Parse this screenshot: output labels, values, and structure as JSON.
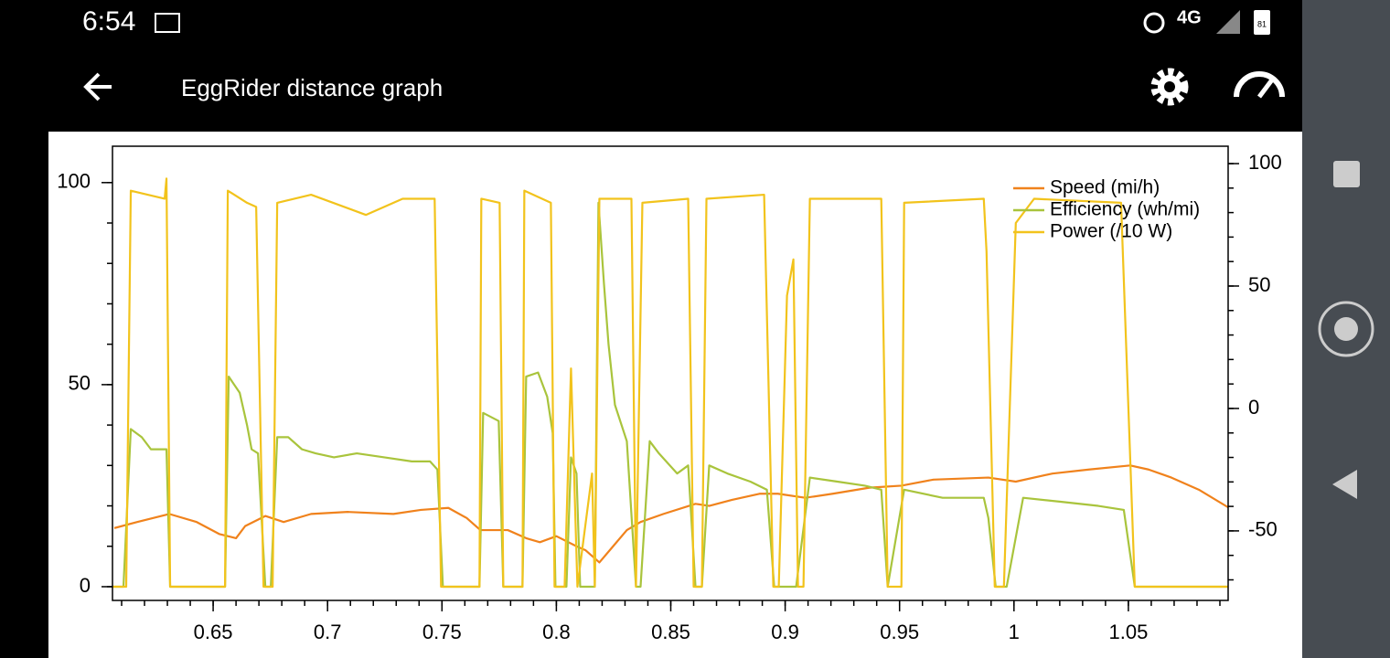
{
  "status_bar": {
    "time": "6:54",
    "network": "4G",
    "battery": "81"
  },
  "toolbar": {
    "title": "EggRider distance graph"
  },
  "chart_data": {
    "type": "line",
    "xlim": [
      0.606,
      1.0936
    ],
    "xticks": [
      0.65,
      0.7,
      0.75,
      0.8,
      0.85,
      0.9,
      0.95,
      1,
      1.05
    ],
    "ylim": [
      -3.4,
      109
    ],
    "yticks": [
      0,
      50,
      100
    ],
    "y2lim": [
      -78.4,
      107.1
    ],
    "y2ticks": [
      -50,
      0,
      50,
      100
    ],
    "legend": "top-right",
    "series": [
      {
        "name": "Speed (mi/h)",
        "color": "#f0821c",
        "x": [
          0.6068,
          0.6168,
          0.6308,
          0.6428,
          0.6528,
          0.66,
          0.664,
          0.6728,
          0.6808,
          0.6928,
          0.7088,
          0.7288,
          0.7408,
          0.7528,
          0.7608,
          0.7668,
          0.7788,
          0.7868,
          0.7928,
          0.8,
          0.8088,
          0.8128,
          0.8188,
          0.8248,
          0.8308,
          0.8368,
          0.8468,
          0.8608,
          0.8668,
          0.8768,
          0.8888,
          0.8968,
          0.9088,
          0.9208,
          0.9368,
          0.9508,
          0.9648,
          0.9888,
          1.0008,
          1.0168,
          1.0328,
          1.0508,
          1.0588,
          1.0688,
          1.0808,
          1.094
        ],
        "values": [
          14.5,
          16,
          18,
          16,
          13,
          12,
          15,
          17.5,
          16,
          18,
          18.5,
          18,
          19,
          19.5,
          17,
          14,
          14,
          12,
          11,
          12.5,
          10,
          9,
          6,
          10,
          14,
          16,
          18,
          20.5,
          20,
          21.5,
          23,
          23,
          22,
          23,
          24.5,
          25,
          26.5,
          27,
          26,
          28,
          29,
          30,
          29,
          27,
          24,
          19.5
        ]
      },
      {
        "name": "Efficiency (wh/mi)",
        "color": "#a9c43c",
        "x": [
          0.606,
          0.6108,
          0.614,
          0.6188,
          0.6228,
          0.6296,
          0.6312,
          0.6552,
          0.6568,
          0.6616,
          0.6648,
          0.6668,
          0.6696,
          0.6728,
          0.6752,
          0.678,
          0.6828,
          0.6888,
          0.6948,
          0.7028,
          0.7128,
          0.7248,
          0.7368,
          0.7448,
          0.748,
          0.7504,
          0.7664,
          0.768,
          0.7748,
          0.7768,
          0.7852,
          0.7868,
          0.792,
          0.796,
          0.7984,
          0.7996,
          0.8044,
          0.8064,
          0.8088,
          0.8104,
          0.8168,
          0.8184,
          0.8208,
          0.8228,
          0.8256,
          0.8308,
          0.8348,
          0.8368,
          0.8408,
          0.8448,
          0.8528,
          0.8576,
          0.8608,
          0.8636,
          0.8668,
          0.8748,
          0.8848,
          0.892,
          0.8952,
          0.9048,
          0.9108,
          0.9228,
          0.9348,
          0.942,
          0.9448,
          0.952,
          0.9688,
          0.9868,
          0.9888,
          0.992,
          0.9968,
          1.004,
          1.0208,
          1.0368,
          1.048,
          1.0528,
          1.094
        ],
        "values": [
          0,
          0,
          39,
          37,
          34,
          34,
          0,
          0,
          52,
          48,
          40,
          34,
          33,
          0,
          0,
          37,
          37,
          34,
          33,
          32,
          33,
          32,
          31,
          31,
          29,
          0,
          0,
          43,
          41,
          0,
          0,
          52,
          53,
          47,
          38,
          0,
          0,
          32,
          28,
          0,
          0,
          95,
          75,
          60,
          45,
          36,
          0,
          0,
          36,
          33,
          28,
          30,
          0,
          0,
          30,
          28,
          26,
          24,
          0,
          0,
          27,
          26,
          25,
          24,
          0,
          24,
          22,
          22,
          17,
          0,
          0,
          22,
          21,
          20,
          19,
          0,
          0
        ]
      },
      {
        "name": "Power (/10 W)",
        "color": "#f2c31c",
        "x": [
          0.606,
          0.612,
          0.614,
          0.6288,
          0.6296,
          0.6312,
          0.6552,
          0.6564,
          0.6648,
          0.6688,
          0.672,
          0.676,
          0.678,
          0.6928,
          0.7168,
          0.7328,
          0.7468,
          0.7496,
          0.7664,
          0.7672,
          0.7752,
          0.7768,
          0.7852,
          0.786,
          0.7976,
          0.7992,
          0.8036,
          0.8064,
          0.8092,
          0.8156,
          0.8168,
          0.8188,
          0.8328,
          0.8348,
          0.8376,
          0.8576,
          0.86,
          0.8636,
          0.8656,
          0.8908,
          0.8948,
          0.8972,
          0.9008,
          0.9036,
          0.9056,
          0.908,
          0.9108,
          0.942,
          0.9448,
          0.9508,
          0.952,
          0.9868,
          0.988,
          0.9916,
          0.9956,
          1.0008,
          1.0088,
          1.0468,
          1.0528,
          1.094
        ],
        "values": [
          0,
          0,
          98,
          96,
          101,
          0,
          0,
          98,
          95,
          94,
          0,
          0,
          95,
          97,
          92,
          96,
          96,
          0,
          0,
          96,
          95,
          0,
          0,
          98,
          95,
          0,
          0,
          54,
          0,
          28,
          0,
          96,
          96,
          0,
          95,
          96,
          0,
          0,
          96,
          97,
          0,
          0,
          72,
          81,
          0,
          0,
          96,
          96,
          0,
          0,
          95,
          96,
          83,
          0,
          0,
          90,
          96,
          95,
          0,
          0
        ]
      }
    ]
  }
}
